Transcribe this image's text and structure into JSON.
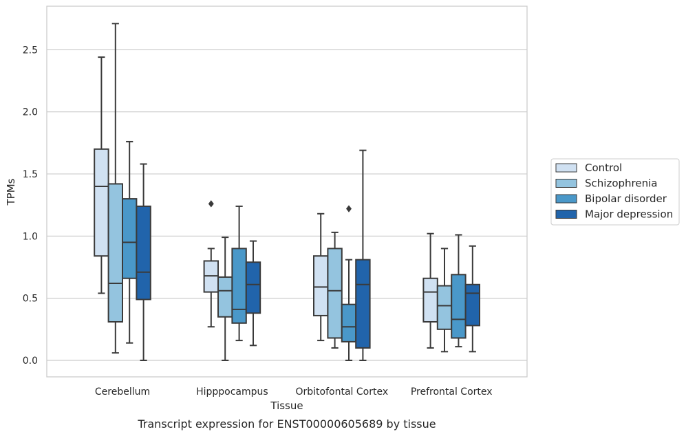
{
  "chart_data": {
    "type": "box",
    "title": "",
    "caption": "Transcript expression for ENST00000605689 by tissue",
    "xlabel": "Tissue",
    "ylabel": "TPMs",
    "ylim": [
      -0.13,
      2.85
    ],
    "yticks": [
      0.0,
      0.5,
      1.0,
      1.5,
      2.0,
      2.5
    ],
    "ytick_labels": [
      "0.0",
      "0.5",
      "1.0",
      "1.5",
      "2.0",
      "2.5"
    ],
    "grid": "horizontal",
    "legend_position": "right",
    "categories": [
      "Cerebellum",
      "Hipppocampus",
      "Orbitofontal Cortex",
      "Prefrontal Cortex"
    ],
    "series": [
      {
        "name": "Control",
        "color": "#d0e1f2",
        "boxes": [
          {
            "whislo": 0.54,
            "q1": 0.84,
            "med": 1.4,
            "q3": 1.7,
            "whishi": 2.44,
            "fliers": []
          },
          {
            "whislo": 0.27,
            "q1": 0.55,
            "med": 0.68,
            "q3": 0.8,
            "whishi": 0.9,
            "fliers": [
              1.26
            ]
          },
          {
            "whislo": 0.16,
            "q1": 0.36,
            "med": 0.59,
            "q3": 0.84,
            "whishi": 1.18,
            "fliers": []
          },
          {
            "whislo": 0.1,
            "q1": 0.31,
            "med": 0.55,
            "q3": 0.66,
            "whishi": 1.02,
            "fliers": []
          }
        ]
      },
      {
        "name": "Schizophrenia",
        "color": "#94c4df",
        "boxes": [
          {
            "whislo": 0.06,
            "q1": 0.31,
            "med": 0.62,
            "q3": 1.42,
            "whishi": 2.71,
            "fliers": []
          },
          {
            "whislo": 0.0,
            "q1": 0.35,
            "med": 0.56,
            "q3": 0.67,
            "whishi": 0.99,
            "fliers": []
          },
          {
            "whislo": 0.1,
            "q1": 0.18,
            "med": 0.56,
            "q3": 0.9,
            "whishi": 1.03,
            "fliers": []
          },
          {
            "whislo": 0.07,
            "q1": 0.25,
            "med": 0.44,
            "q3": 0.6,
            "whishi": 0.9,
            "fliers": []
          }
        ]
      },
      {
        "name": "Bipolar disorder",
        "color": "#4a98c9",
        "boxes": [
          {
            "whislo": 0.14,
            "q1": 0.66,
            "med": 0.95,
            "q3": 1.3,
            "whishi": 1.76,
            "fliers": []
          },
          {
            "whislo": 0.16,
            "q1": 0.3,
            "med": 0.41,
            "q3": 0.9,
            "whishi": 1.24,
            "fliers": []
          },
          {
            "whislo": 0.0,
            "q1": 0.15,
            "med": 0.27,
            "q3": 0.45,
            "whishi": 0.81,
            "fliers": [
              1.22
            ]
          },
          {
            "whislo": 0.11,
            "q1": 0.18,
            "med": 0.33,
            "q3": 0.69,
            "whishi": 1.01,
            "fliers": []
          }
        ]
      },
      {
        "name": "Major depression",
        "color": "#2164ab",
        "boxes": [
          {
            "whislo": 0.0,
            "q1": 0.49,
            "med": 0.71,
            "q3": 1.24,
            "whishi": 1.58,
            "fliers": []
          },
          {
            "whislo": 0.12,
            "q1": 0.38,
            "med": 0.61,
            "q3": 0.79,
            "whishi": 0.96,
            "fliers": []
          },
          {
            "whislo": 0.0,
            "q1": 0.1,
            "med": 0.61,
            "q3": 0.81,
            "whishi": 1.69,
            "fliers": []
          },
          {
            "whislo": 0.07,
            "q1": 0.28,
            "med": 0.54,
            "q3": 0.61,
            "whishi": 0.92,
            "fliers": []
          }
        ]
      }
    ]
  }
}
